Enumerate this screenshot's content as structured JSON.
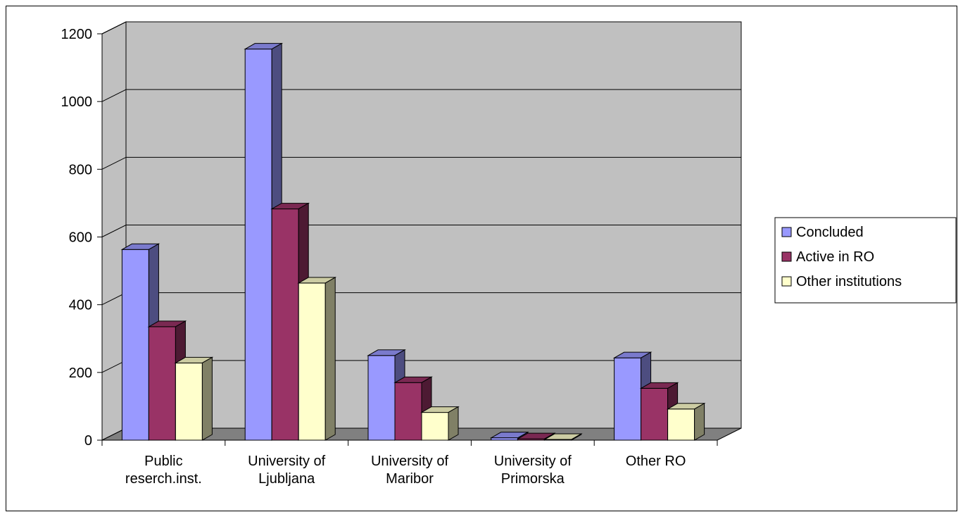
{
  "chart_data": {
    "type": "bar",
    "style": "3d-clustered-column",
    "categories": [
      [
        "Public",
        "reserch.inst."
      ],
      [
        "University of",
        "Ljubljana"
      ],
      [
        "University of",
        "Maribor"
      ],
      [
        "University of",
        "Primorska"
      ],
      [
        "Other RO"
      ]
    ],
    "series": [
      {
        "name": "Concluded",
        "color": "#9999ff",
        "values": [
          563,
          1155,
          250,
          7,
          243
        ]
      },
      {
        "name": "Active in RO",
        "color": "#993366",
        "values": [
          335,
          683,
          170,
          4,
          153
        ]
      },
      {
        "name": "Other institutions",
        "color": "#ffffcc",
        "values": [
          228,
          464,
          82,
          2,
          92
        ]
      }
    ],
    "yticks": [
      0,
      200,
      400,
      600,
      800,
      1000,
      1200
    ],
    "ylim": [
      0,
      1200
    ],
    "grid": true,
    "legend": "right",
    "colors": {
      "wall": "#c0c0c0",
      "floor": "#808080",
      "axis": "#000000"
    }
  }
}
